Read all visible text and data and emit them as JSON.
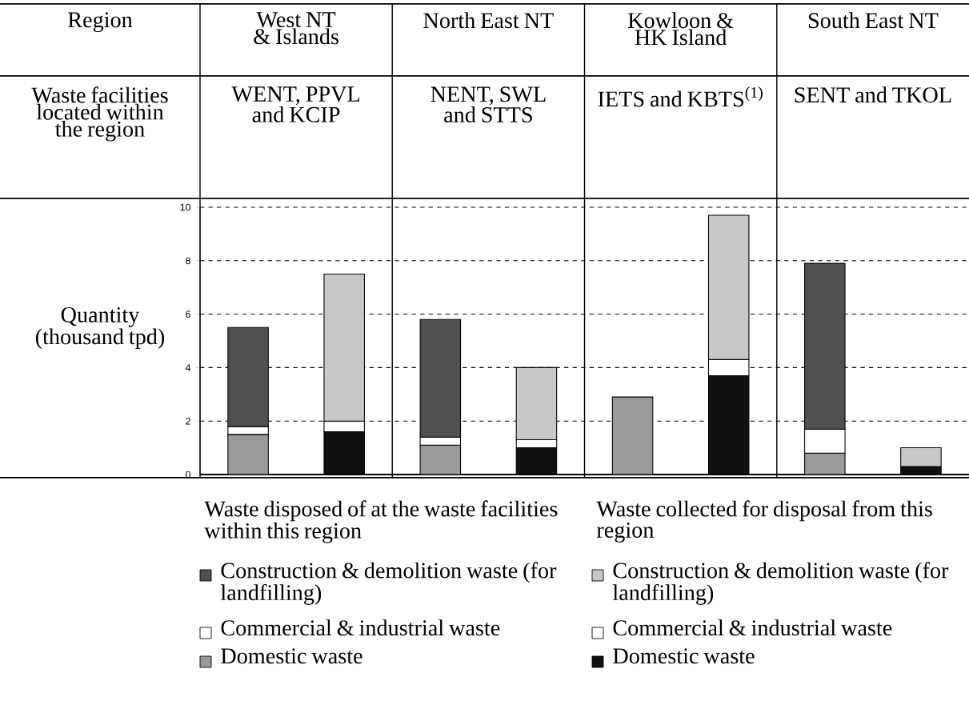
{
  "chart_data": {
    "type": "bar",
    "stacked": true,
    "ylabel": "Quantity (thousand tpd)",
    "categories": [
      null,
      null,
      null,
      null,
      null,
      null,
      null,
      null
    ],
    "series": [
      {
        "name": "Domestic waste",
        "color": "#9a9a9a",
        "values": [
          1.5,
          null,
          1.1,
          null,
          2.9,
          null,
          0.8,
          null
        ]
      },
      {
        "name": "Commercial & industrial waste",
        "color": "#ffffff",
        "values": [
          0.3,
          null,
          0.3,
          null,
          0,
          null,
          0.9,
          null
        ]
      },
      {
        "name": "Construction & demolition waste (for landfilling)",
        "color": "#505050",
        "values": [
          3.7,
          null,
          4.4,
          null,
          0,
          null,
          6.2,
          null
        ]
      },
      {
        "name": "Domestic waste",
        "color": "#101010",
        "values": [
          null,
          1.6,
          null,
          1.0,
          null,
          3.7,
          null,
          0.3
        ]
      },
      {
        "name": "Commercial & industrial waste",
        "color": "#ffffff",
        "values": [
          null,
          0.4,
          null,
          0.3,
          null,
          0.6,
          null,
          0
        ]
      },
      {
        "name": "Construction & demolition waste (for landfilling)",
        "color": "#c8c8c8",
        "values": [
          null,
          5.5,
          null,
          2.7,
          null,
          5.4,
          null,
          0.7
        ]
      }
    ],
    "ylim": [
      0,
      10
    ],
    "yticks": [
      0,
      2,
      4,
      6,
      8,
      10
    ],
    "grid": "y",
    "legend": "bottom",
    "annotations": [
      "Region",
      "West NT & Islands",
      "North East NT",
      "Kowloon & HK Island",
      "South East NT",
      "Waste facilities located within the region",
      "WENT, PPVL and KCIP",
      "NENT, SWL and STTS",
      "IETS and KBTS$^{(1)}$",
      "SENT and TKOL",
      "Waste disposed of at the waste facilities within this region",
      "Waste collected for disposal from this region"
    ]
  }
}
